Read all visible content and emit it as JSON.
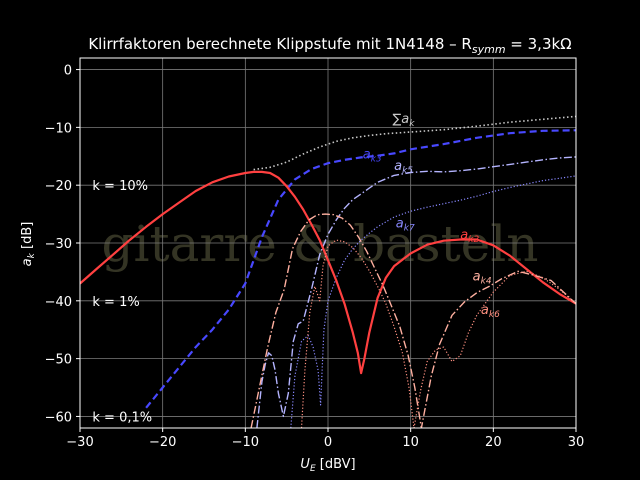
{
  "chart_data": {
    "type": "line",
    "title": "Klirrfaktoren berechnete Klippstufe mit 1N4148 – R",
    "title_sub": "symm",
    "title_tail": " =  3,3kΩ",
    "xlabel": "U",
    "xlabel_sub": "E",
    "xlabel_unit": " [dBV]",
    "ylabel": "a",
    "ylabel_sub": "k",
    "ylabel_unit": " [dB]",
    "xlim": [
      -30,
      30
    ],
    "ylim": [
      -62,
      2
    ],
    "xticks": [
      -30,
      -20,
      -10,
      0,
      10,
      20,
      30
    ],
    "yticks": [
      0,
      -10,
      -20,
      -30,
      -40,
      -50,
      -60
    ],
    "xtick_labels": [
      "−30",
      "−20",
      "−10",
      "0",
      "10",
      "20",
      "30"
    ],
    "ytick_labels": [
      "0",
      "−10",
      "−20",
      "−30",
      "−40",
      "−50",
      "−60"
    ],
    "grid": true,
    "watermark": "gitarre & basteln",
    "k_labels": [
      {
        "text": "k = 10%",
        "x": -28.5,
        "y": -20
      },
      {
        "text": "k = 1%",
        "x": -28.5,
        "y": -40
      },
      {
        "text": "k = 0,1%",
        "x": -28.5,
        "y": -60
      }
    ],
    "series": [
      {
        "name": "∑a",
        "name_sub": "k",
        "color": "#c8c8c8",
        "dash": "1.5,2.5",
        "width": 1.6,
        "label_at": [
          7.8,
          -9.2
        ],
        "x": [
          -9,
          -7,
          -5,
          -3,
          -1,
          1,
          3,
          5,
          7,
          10,
          14,
          18,
          22,
          26,
          30
        ],
        "y": [
          -17.3,
          -16.9,
          -16.0,
          -14.6,
          -13.4,
          -12.4,
          -11.8,
          -11.4,
          -11.1,
          -10.8,
          -10.4,
          -9.8,
          -9.1,
          -8.6,
          -8.1
        ]
      },
      {
        "name": "a",
        "name_sub": "k3",
        "color": "#4848ff",
        "dash": "7,4",
        "width": 2.2,
        "label_at": [
          4.2,
          -15.4
        ],
        "x": [
          -22,
          -20,
          -18,
          -16,
          -14,
          -12,
          -10,
          -8,
          -6,
          -4,
          -2,
          0,
          2,
          4,
          6,
          8,
          10,
          14,
          18,
          22,
          26,
          30
        ],
        "y": [
          -58.5,
          -55,
          -51.5,
          -48,
          -45,
          -41.5,
          -37,
          -29,
          -22.5,
          -19,
          -17.2,
          -16.2,
          -15.6,
          -15.2,
          -14.9,
          -14.5,
          -13.8,
          -12.9,
          -11.8,
          -11,
          -10.6,
          -10.5
        ]
      },
      {
        "name": "a",
        "name_sub": "k5",
        "color": "#b4b4ff",
        "dash": "8,2.5,1.5,2.5",
        "width": 1.4,
        "label_at": [
          8.0,
          -17.4
        ],
        "x": [
          -8.6,
          -8.3,
          -8.0,
          -7.6,
          -7.2,
          -6.8,
          -6.4,
          -6.0,
          -5.4,
          -4.8,
          -4.2,
          -3.6,
          -3.0,
          -2.0,
          -1.0,
          0,
          1,
          2,
          3,
          4,
          5,
          6,
          8,
          10,
          12,
          14,
          16,
          18,
          20,
          22,
          24,
          26,
          28,
          30
        ],
        "y": [
          -62,
          -58,
          -54,
          -51,
          -49,
          -49.5,
          -52,
          -56,
          -60,
          -56,
          -47,
          -44,
          -43.5,
          -38,
          -32,
          -28.5,
          -26,
          -24,
          -22.5,
          -21.5,
          -20.5,
          -19.5,
          -18.3,
          -17.8,
          -17.6,
          -17.7,
          -17.5,
          -17.2,
          -16.8,
          -16.4,
          -16.0,
          -15.6,
          -15.3,
          -15.1
        ]
      },
      {
        "name": "a",
        "name_sub": "k7",
        "color": "#8888ff",
        "dash": "1.2,2",
        "width": 1.2,
        "label_at": [
          8.2,
          -27.3
        ],
        "x": [
          -4.5,
          -4.0,
          -3.2,
          -2.4,
          -1.8,
          -1.2,
          -0.9,
          -0.5,
          0,
          1,
          2,
          3,
          4,
          5,
          6,
          8,
          10,
          12,
          14,
          16,
          18,
          20,
          22,
          24,
          26,
          28,
          30
        ],
        "y": [
          -62,
          -53,
          -47,
          -46,
          -48,
          -52,
          -58,
          -45,
          -40,
          -36,
          -33,
          -31,
          -29.5,
          -28.3,
          -27.2,
          -25.5,
          -24.5,
          -23.8,
          -23.2,
          -22.6,
          -21.9,
          -21.1,
          -20.4,
          -19.8,
          -19.2,
          -18.8,
          -18.4
        ]
      },
      {
        "name": "a",
        "name_sub": "k2",
        "color": "#ff4040",
        "dash": "",
        "width": 2.2,
        "label_at": [
          16.0,
          -29.3
        ],
        "x": [
          -30,
          -28,
          -26,
          -24,
          -22,
          -20,
          -18,
          -16,
          -14,
          -12,
          -10,
          -9,
          -8,
          -7,
          -6,
          -5,
          -4,
          -3,
          -2,
          -1,
          0,
          1,
          2,
          3,
          3.6,
          4,
          4.4,
          5,
          6,
          7,
          8,
          10,
          12,
          14,
          16,
          18,
          20,
          22,
          24,
          26,
          28,
          30
        ],
        "y": [
          -37,
          -34.5,
          -32,
          -29.5,
          -27.2,
          -25,
          -23,
          -21,
          -19.5,
          -18.5,
          -17.9,
          -17.7,
          -17.7,
          -17.9,
          -18.7,
          -20.2,
          -22,
          -24.2,
          -26.8,
          -29.5,
          -33,
          -36.5,
          -40.5,
          -45.5,
          -49,
          -52.5,
          -50,
          -45.5,
          -39.5,
          -36,
          -34,
          -31.8,
          -30.3,
          -29.6,
          -29.4,
          -29.4,
          -30.4,
          -32.2,
          -34.5,
          -36.8,
          -38.8,
          -40.5
        ]
      },
      {
        "name": "a",
        "name_sub": "k4",
        "color": "#ffb0a0",
        "dash": "8,2.5,1.5,2.5",
        "width": 1.4,
        "label_at": [
          17.5,
          -36.5
        ],
        "x": [
          -9.3,
          -8.3,
          -7.3,
          -6.3,
          -5.3,
          -4.3,
          -3.3,
          -2.3,
          -1.3,
          -0.3,
          0.7,
          1.7,
          2.7,
          3.7,
          4.7,
          5.7,
          6.7,
          7.7,
          8.7,
          9.7,
          10.5,
          11.3,
          12.5,
          13.5,
          15,
          16.5,
          18,
          19.5,
          21,
          23,
          25,
          27,
          30
        ],
        "y": [
          -62,
          -55,
          -48,
          -42,
          -38,
          -31,
          -28,
          -26,
          -25.1,
          -25,
          -25.1,
          -25.7,
          -26.9,
          -29,
          -31.5,
          -34.5,
          -37.5,
          -41,
          -44.5,
          -49.5,
          -55,
          -62,
          -53,
          -47.5,
          -42.5,
          -40.2,
          -38.6,
          -37.5,
          -36.2,
          -34.9,
          -35.6,
          -36.5,
          -40.5
        ]
      },
      {
        "name": "a",
        "name_sub": "k6",
        "color": "#ff9080",
        "dash": "1.2,2",
        "width": 1.2,
        "label_at": [
          18.5,
          -42.3
        ],
        "x": [
          -3.2,
          -2.8,
          -2.2,
          -1.6,
          -1.0,
          -0.6,
          0,
          1,
          2,
          3,
          4,
          5,
          6,
          7,
          8,
          9,
          9.8,
          10.4,
          11.2,
          12,
          13,
          14,
          15,
          16,
          17,
          18,
          20,
          22,
          24,
          26,
          28,
          30
        ],
        "y": [
          -62,
          -52,
          -42,
          -37.5,
          -40,
          -34,
          -30.5,
          -29.5,
          -29.8,
          -30.8,
          -32.5,
          -34.8,
          -37.5,
          -40.5,
          -44.5,
          -49,
          -55,
          -62,
          -55.5,
          -50.5,
          -48.5,
          -48,
          -50.5,
          -49.5,
          -45.5,
          -42.5,
          -38.5,
          -35.6,
          -34.9,
          -36,
          -38,
          -40.5
        ]
      }
    ]
  }
}
